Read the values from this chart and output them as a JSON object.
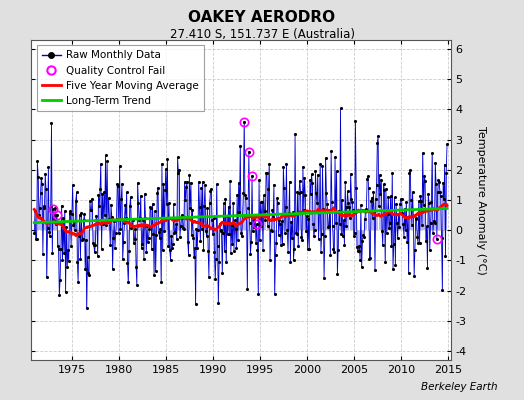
{
  "title": "OAKEY AERODRO",
  "subtitle": "27.410 S, 151.737 E (Australia)",
  "ylabel": "Temperature Anomaly (°C)",
  "xlabel_years": [
    1975,
    1980,
    1985,
    1990,
    1995,
    2000,
    2005,
    2010,
    2015
  ],
  "ylim": [
    -4.3,
    6.3
  ],
  "yticks": [
    -4,
    -3,
    -2,
    -1,
    0,
    1,
    2,
    3,
    4,
    5,
    6
  ],
  "start_year": 1971,
  "end_year": 2014,
  "background_color": "#e0e0e0",
  "plot_bg_color": "#ffffff",
  "watermark": "Berkeley Earth",
  "seed": 12345,
  "qc_fail_years": [
    1973.0,
    1973.4,
    1993.3,
    1993.8,
    1994.2,
    1994.7,
    2013.8
  ],
  "qc_fail_values": [
    0.7,
    0.5,
    3.6,
    2.6,
    1.8,
    0.2,
    -0.3
  ],
  "bar_color": "#aaaaff",
  "bar_edge_color": "#4444cc",
  "line_color": "#0000cc",
  "dot_color": "#000000",
  "ma_color": "#ff0000",
  "trend_color": "#00cc00"
}
